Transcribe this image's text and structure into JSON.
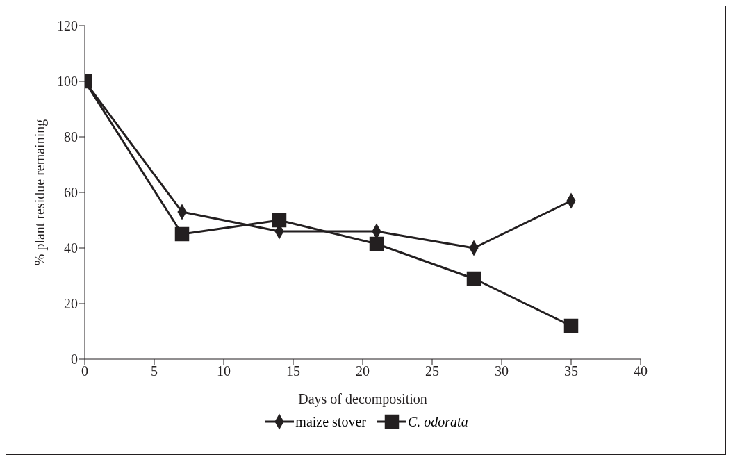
{
  "chart_data": {
    "type": "line",
    "xlabel": "Days of decomposition",
    "ylabel": "% plant residue remaining",
    "x": [
      0,
      7,
      14,
      21,
      28,
      35
    ],
    "series": [
      {
        "name": "maize stover",
        "color": "#231f20",
        "marker": "diamond",
        "values": [
          100,
          53,
          46,
          46,
          40,
          57
        ]
      },
      {
        "name": "C. odorata",
        "color": "#231f20",
        "marker": "square",
        "values": [
          100,
          45,
          50,
          41.5,
          29,
          12
        ]
      }
    ],
    "xlim": [
      0,
      40
    ],
    "xticks": [
      0,
      5,
      10,
      15,
      20,
      25,
      30,
      35,
      40
    ],
    "ylim": [
      0,
      120
    ],
    "yticks": [
      0,
      20,
      40,
      60,
      80,
      100,
      120
    ],
    "grid": false,
    "legend": "bottom",
    "line_style": "solid"
  }
}
